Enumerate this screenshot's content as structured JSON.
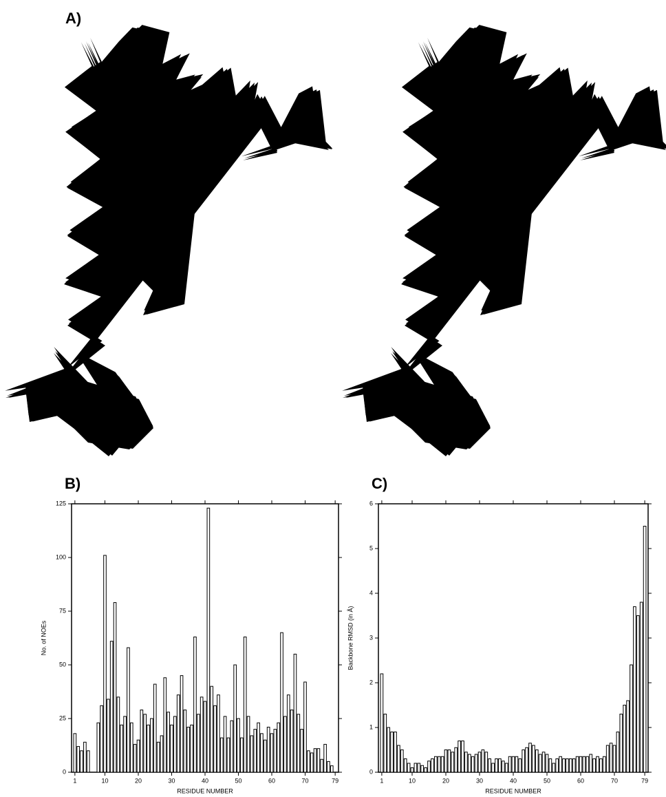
{
  "panel_label": "A)",
  "chart_data": [
    {
      "type": "bar",
      "label": "B)",
      "x_label": "RESIDUE NUMBER",
      "y_label": "No. of NOEs",
      "x": [
        1,
        2,
        3,
        4,
        5,
        6,
        7,
        8,
        9,
        10,
        11,
        12,
        13,
        14,
        15,
        16,
        17,
        18,
        19,
        20,
        21,
        22,
        23,
        24,
        25,
        26,
        27,
        28,
        29,
        30,
        31,
        32,
        33,
        34,
        35,
        36,
        37,
        38,
        39,
        40,
        41,
        42,
        43,
        44,
        45,
        46,
        47,
        48,
        49,
        50,
        51,
        52,
        53,
        54,
        55,
        56,
        57,
        58,
        59,
        60,
        61,
        62,
        63,
        64,
        65,
        66,
        67,
        68,
        69,
        70,
        71,
        72,
        73,
        74,
        75,
        76,
        77,
        78,
        79
      ],
      "values": [
        18,
        12,
        10,
        14,
        10,
        0,
        0,
        23,
        31,
        101,
        34,
        61,
        79,
        35,
        22,
        26,
        58,
        23,
        13,
        15,
        29,
        27,
        22,
        25,
        41,
        14,
        17,
        44,
        28,
        22,
        26,
        36,
        45,
        29,
        21,
        22,
        63,
        27,
        35,
        33,
        123,
        40,
        31,
        36,
        16,
        26,
        16,
        24,
        50,
        25,
        16,
        63,
        26,
        17,
        20,
        23,
        18,
        15,
        21,
        18,
        20,
        23,
        65,
        26,
        36,
        29,
        55,
        27,
        20,
        42,
        10,
        9,
        11,
        11,
        6,
        13,
        5,
        3,
        0
      ],
      "color": "#000000",
      "xlim": [
        0,
        80
      ],
      "xticks": [
        1,
        10,
        20,
        30,
        40,
        50,
        60,
        70,
        79
      ],
      "ylim": [
        0,
        125
      ],
      "yticks": [
        0,
        25,
        50,
        75,
        100,
        125
      ]
    },
    {
      "type": "bar",
      "label": "C)",
      "x_label": "RESIDUE NUMBER",
      "y_label": "Backbone RMSD (in Å)",
      "x": [
        1,
        2,
        3,
        4,
        5,
        6,
        7,
        8,
        9,
        10,
        11,
        12,
        13,
        14,
        15,
        16,
        17,
        18,
        19,
        20,
        21,
        22,
        23,
        24,
        25,
        26,
        27,
        28,
        29,
        30,
        31,
        32,
        33,
        34,
        35,
        36,
        37,
        38,
        39,
        40,
        41,
        42,
        43,
        44,
        45,
        46,
        47,
        48,
        49,
        50,
        51,
        52,
        53,
        54,
        55,
        56,
        57,
        58,
        59,
        60,
        61,
        62,
        63,
        64,
        65,
        66,
        67,
        68,
        69,
        70,
        71,
        72,
        73,
        74,
        75,
        76,
        77,
        78,
        79
      ],
      "values": [
        2.2,
        1.3,
        1.0,
        0.9,
        0.9,
        0.6,
        0.5,
        0.3,
        0.2,
        0.1,
        0.2,
        0.2,
        0.15,
        0.1,
        0.25,
        0.3,
        0.35,
        0.35,
        0.35,
        0.5,
        0.5,
        0.45,
        0.55,
        0.7,
        0.7,
        0.45,
        0.4,
        0.35,
        0.4,
        0.45,
        0.5,
        0.45,
        0.3,
        0.2,
        0.3,
        0.3,
        0.25,
        0.2,
        0.35,
        0.35,
        0.35,
        0.3,
        0.5,
        0.55,
        0.65,
        0.6,
        0.5,
        0.4,
        0.45,
        0.4,
        0.3,
        0.2,
        0.3,
        0.35,
        0.3,
        0.3,
        0.3,
        0.3,
        0.35,
        0.35,
        0.35,
        0.35,
        0.4,
        0.3,
        0.35,
        0.3,
        0.35,
        0.6,
        0.65,
        0.6,
        0.9,
        1.3,
        1.5,
        1.6,
        2.4,
        3.7,
        3.5,
        3.8,
        5.5
      ],
      "color": "#000000",
      "xlim": [
        0,
        80
      ],
      "xticks": [
        1,
        10,
        20,
        30,
        40,
        50,
        60,
        70,
        79
      ],
      "ylim": [
        0,
        6
      ],
      "yticks": [
        0,
        1,
        2,
        3,
        4,
        5,
        6
      ]
    }
  ]
}
